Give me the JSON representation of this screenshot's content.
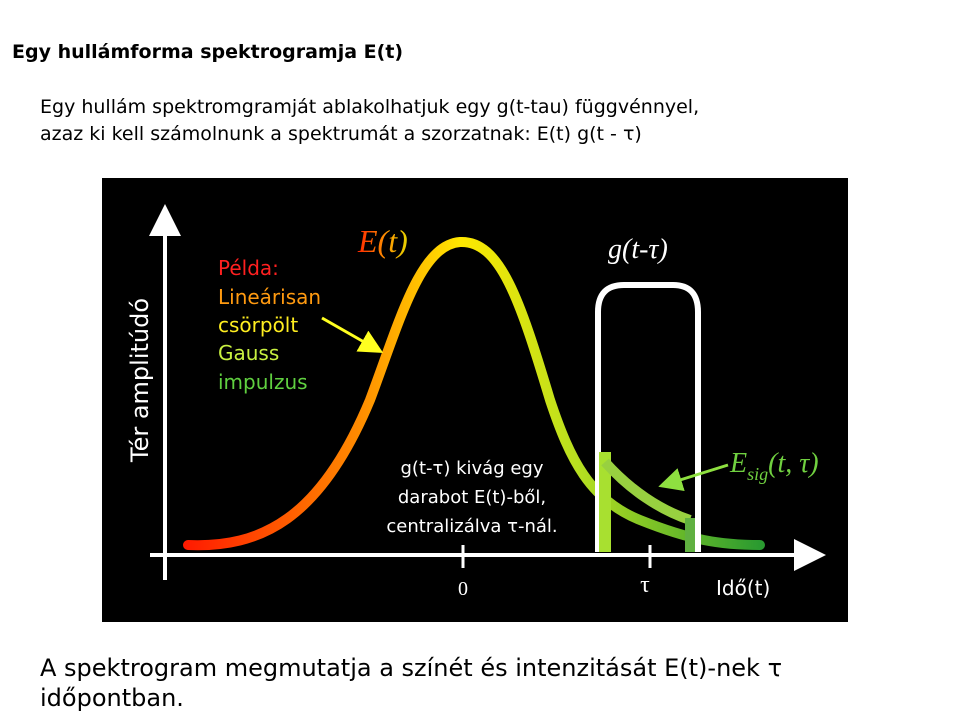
{
  "header": {
    "title": "Egy hullámforma spektrogramja E(t)"
  },
  "intro": {
    "lines": [
      "Egy hullám spektromgramját ablakolhatjuk egy g(t-tau) függvénnyel,",
      "azaz ki kell számolnunk a spektrumát a szorzatnak: E(t) g(t - τ)"
    ]
  },
  "figure": {
    "pulse_label": "E(t)",
    "example_lines": [
      "Példa:",
      "Lineárisan",
      "csörpölt",
      "Gauss",
      "impulzus"
    ],
    "gate_label": "g(t-τ)",
    "y_axis_label": "Tér amplitúdó",
    "sig_label": {
      "main": "E",
      "sub": "sig",
      "args": "(t, τ)"
    },
    "note_lines": [
      "g(t-τ) kivág egy",
      "darabot E(t)-ből,",
      "centralizálva τ-nál."
    ],
    "tick_zero": "0",
    "tick_tau": "τ",
    "x_axis_label": "Idő(t)"
  },
  "footer": {
    "text": "A spektrogram megmutatja a színét és intenzitását E(t)-nek τ időpontban."
  }
}
